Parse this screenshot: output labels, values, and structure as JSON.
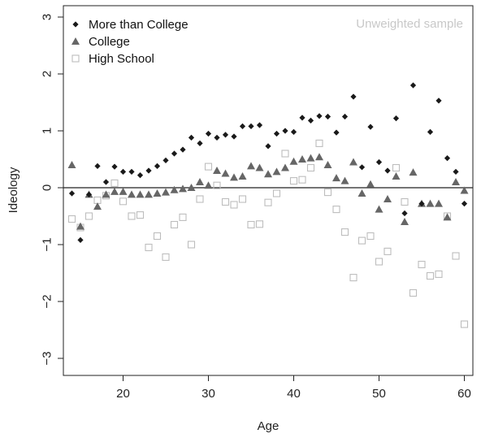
{
  "chart_data": {
    "type": "scatter",
    "title": "",
    "xlabel": "Age",
    "ylabel": "Ideology",
    "xlim": [
      13,
      61
    ],
    "ylim": [
      -3.3,
      3.2
    ],
    "x_ticks": [
      20,
      30,
      40,
      50,
      60
    ],
    "y_ticks": [
      -3,
      -2,
      -1,
      0,
      1,
      2,
      3
    ],
    "reference_line_y": 0,
    "grid": false,
    "legend_position": "top-left",
    "annotation": "Unweighted sample",
    "colors": {
      "more_than_college": "#1a1a1a",
      "college": "#666666",
      "high_school": "#bdbdbd"
    },
    "series": [
      {
        "name": "More than College",
        "marker": "diamond",
        "points": [
          [
            14,
            -0.1
          ],
          [
            15,
            -0.92
          ],
          [
            16,
            -0.12
          ],
          [
            17,
            0.38
          ],
          [
            18,
            0.1
          ],
          [
            19,
            0.37
          ],
          [
            20,
            0.28
          ],
          [
            21,
            0.28
          ],
          [
            22,
            0.22
          ],
          [
            23,
            0.3
          ],
          [
            24,
            0.38
          ],
          [
            25,
            0.48
          ],
          [
            26,
            0.6
          ],
          [
            27,
            0.67
          ],
          [
            28,
            0.88
          ],
          [
            29,
            0.78
          ],
          [
            30,
            0.95
          ],
          [
            31,
            0.88
          ],
          [
            32,
            0.93
          ],
          [
            33,
            0.9
          ],
          [
            34,
            1.08
          ],
          [
            35,
            1.08
          ],
          [
            36,
            1.1
          ],
          [
            37,
            0.73
          ],
          [
            38,
            0.95
          ],
          [
            39,
            1.0
          ],
          [
            40,
            0.98
          ],
          [
            41,
            1.23
          ],
          [
            42,
            1.18
          ],
          [
            43,
            1.26
          ],
          [
            44,
            1.25
          ],
          [
            45,
            0.97
          ],
          [
            46,
            1.25
          ],
          [
            47,
            1.6
          ],
          [
            48,
            0.36
          ],
          [
            49,
            1.07
          ],
          [
            50,
            0.45
          ],
          [
            51,
            0.3
          ],
          [
            52,
            1.22
          ],
          [
            53,
            -0.45
          ],
          [
            54,
            1.8
          ],
          [
            55,
            -0.28
          ],
          [
            56,
            0.98
          ],
          [
            57,
            1.53
          ],
          [
            58,
            0.52
          ],
          [
            59,
            0.28
          ],
          [
            60,
            -0.28
          ]
        ]
      },
      {
        "name": "College",
        "marker": "triangle",
        "points": [
          [
            14,
            0.4
          ],
          [
            15,
            -0.68
          ],
          [
            16,
            -0.12
          ],
          [
            17,
            -0.33
          ],
          [
            18,
            -0.12
          ],
          [
            19,
            -0.07
          ],
          [
            20,
            -0.07
          ],
          [
            21,
            -0.12
          ],
          [
            22,
            -0.12
          ],
          [
            23,
            -0.12
          ],
          [
            24,
            -0.1
          ],
          [
            25,
            -0.08
          ],
          [
            26,
            -0.04
          ],
          [
            27,
            -0.02
          ],
          [
            28,
            0.0
          ],
          [
            29,
            0.1
          ],
          [
            30,
            0.04
          ],
          [
            31,
            0.3
          ],
          [
            32,
            0.25
          ],
          [
            33,
            0.18
          ],
          [
            34,
            0.2
          ],
          [
            35,
            0.38
          ],
          [
            36,
            0.35
          ],
          [
            37,
            0.24
          ],
          [
            38,
            0.28
          ],
          [
            39,
            0.35
          ],
          [
            40,
            0.46
          ],
          [
            41,
            0.5
          ],
          [
            42,
            0.52
          ],
          [
            43,
            0.54
          ],
          [
            44,
            0.4
          ],
          [
            45,
            0.17
          ],
          [
            46,
            0.12
          ],
          [
            47,
            0.45
          ],
          [
            48,
            -0.1
          ],
          [
            49,
            0.06
          ],
          [
            50,
            -0.38
          ],
          [
            51,
            -0.2
          ],
          [
            52,
            0.2
          ],
          [
            53,
            -0.6
          ],
          [
            54,
            0.27
          ],
          [
            55,
            -0.28
          ],
          [
            56,
            -0.28
          ],
          [
            57,
            -0.28
          ],
          [
            58,
            -0.52
          ],
          [
            59,
            0.1
          ],
          [
            60,
            -0.05
          ]
        ]
      },
      {
        "name": "High School",
        "marker": "square",
        "points": [
          [
            14,
            -0.55
          ],
          [
            15,
            -0.7
          ],
          [
            16,
            -0.5
          ],
          [
            17,
            -0.22
          ],
          [
            18,
            -0.14
          ],
          [
            19,
            0.08
          ],
          [
            20,
            -0.24
          ],
          [
            21,
            -0.5
          ],
          [
            22,
            -0.48
          ],
          [
            23,
            -1.05
          ],
          [
            24,
            -0.85
          ],
          [
            25,
            -1.22
          ],
          [
            26,
            -0.65
          ],
          [
            27,
            -0.52
          ],
          [
            28,
            -1.0
          ],
          [
            29,
            -0.2
          ],
          [
            30,
            0.37
          ],
          [
            31,
            0.04
          ],
          [
            32,
            -0.25
          ],
          [
            33,
            -0.3
          ],
          [
            34,
            -0.2
          ],
          [
            35,
            -0.65
          ],
          [
            36,
            -0.64
          ],
          [
            37,
            -0.26
          ],
          [
            38,
            -0.1
          ],
          [
            39,
            0.6
          ],
          [
            40,
            0.12
          ],
          [
            41,
            0.14
          ],
          [
            42,
            0.35
          ],
          [
            43,
            0.78
          ],
          [
            44,
            -0.08
          ],
          [
            45,
            -0.38
          ],
          [
            46,
            -0.78
          ],
          [
            47,
            -1.58
          ],
          [
            48,
            -0.93
          ],
          [
            49,
            -0.85
          ],
          [
            50,
            -1.3
          ],
          [
            51,
            -1.12
          ],
          [
            52,
            0.35
          ],
          [
            53,
            -0.25
          ],
          [
            54,
            -1.85
          ],
          [
            55,
            -1.35
          ],
          [
            56,
            -1.55
          ],
          [
            57,
            -1.52
          ],
          [
            58,
            -0.5
          ],
          [
            59,
            -1.2
          ],
          [
            60,
            -2.4
          ]
        ]
      }
    ]
  }
}
